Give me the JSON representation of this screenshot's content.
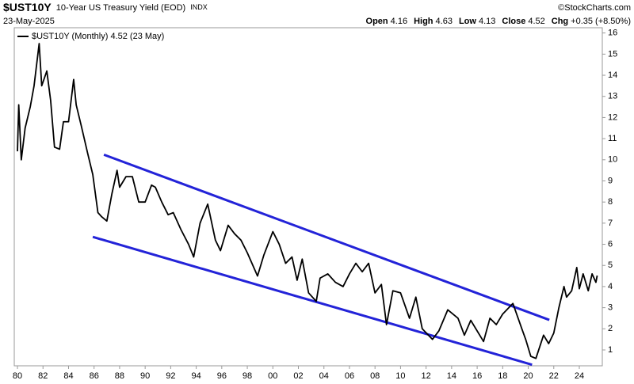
{
  "header": {
    "symbol": "$UST10Y",
    "name": "10-Year US Treasury Yield (EOD)",
    "exchange": "INDX",
    "source": "©StockCharts.com",
    "date": "23-May-2025",
    "quote": [
      {
        "label": "Open",
        "value": "4.16"
      },
      {
        "label": "High",
        "value": "4.63"
      },
      {
        "label": "Low",
        "value": "4.13"
      },
      {
        "label": "Close",
        "value": "4.52"
      },
      {
        "label": "Chg",
        "value": "+0.35 (+8.50%)"
      }
    ]
  },
  "chart_data": {
    "type": "line",
    "legend": "$UST10Y (Monthly) 4.52 (23 May)",
    "xlim": [
      1979.75,
      2025.8
    ],
    "ylim": [
      0.25,
      16.25
    ],
    "xticks": [
      {
        "value": 1980,
        "label": "80"
      },
      {
        "value": 1982,
        "label": "82"
      },
      {
        "value": 1984,
        "label": "84"
      },
      {
        "value": 1986,
        "label": "86"
      },
      {
        "value": 1988,
        "label": "88"
      },
      {
        "value": 1990,
        "label": "90"
      },
      {
        "value": 1992,
        "label": "92"
      },
      {
        "value": 1994,
        "label": "94"
      },
      {
        "value": 1996,
        "label": "96"
      },
      {
        "value": 1998,
        "label": "98"
      },
      {
        "value": 2000,
        "label": "00"
      },
      {
        "value": 2002,
        "label": "02"
      },
      {
        "value": 2004,
        "label": "04"
      },
      {
        "value": 2006,
        "label": "06"
      },
      {
        "value": 2008,
        "label": "08"
      },
      {
        "value": 2010,
        "label": "10"
      },
      {
        "value": 2012,
        "label": "12"
      },
      {
        "value": 2014,
        "label": "14"
      },
      {
        "value": 2016,
        "label": "16"
      },
      {
        "value": 2018,
        "label": "18"
      },
      {
        "value": 2020,
        "label": "20"
      },
      {
        "value": 2022,
        "label": "22"
      },
      {
        "value": 2024,
        "label": "24"
      }
    ],
    "yticks": [
      1,
      2,
      3,
      4,
      5,
      6,
      7,
      8,
      9,
      10,
      11,
      12,
      13,
      14,
      15,
      16
    ],
    "series": [
      {
        "name": "$UST10Y",
        "color": "#000000",
        "x": [
          1980.0,
          1980.1,
          1980.3,
          1980.6,
          1981.0,
          1981.3,
          1981.7,
          1981.9,
          1982.3,
          1982.6,
          1982.9,
          1983.3,
          1983.6,
          1984.0,
          1984.4,
          1984.6,
          1985.0,
          1985.5,
          1985.9,
          1986.3,
          1986.6,
          1987.0,
          1987.4,
          1987.8,
          1988.0,
          1988.5,
          1989.0,
          1989.5,
          1990.0,
          1990.5,
          1990.8,
          1991.3,
          1991.8,
          1992.2,
          1992.8,
          1993.4,
          1993.8,
          1994.3,
          1994.9,
          1995.5,
          1995.9,
          1996.5,
          1997.0,
          1997.5,
          1998.0,
          1998.8,
          1999.3,
          2000.0,
          2000.5,
          2001.0,
          2001.5,
          2001.9,
          2002.3,
          2002.8,
          2003.4,
          2003.7,
          2004.3,
          2004.9,
          2005.5,
          2006.0,
          2006.5,
          2007.0,
          2007.5,
          2008.0,
          2008.5,
          2008.9,
          2009.4,
          2010.0,
          2010.7,
          2011.2,
          2011.7,
          2012.5,
          2013.0,
          2013.7,
          2014.5,
          2015.0,
          2015.5,
          2016.5,
          2017.0,
          2017.5,
          2018.0,
          2018.8,
          2019.5,
          2019.8,
          2020.2,
          2020.6,
          2021.2,
          2021.6,
          2022.0,
          2022.4,
          2022.8,
          2023.0,
          2023.4,
          2023.8,
          2024.0,
          2024.3,
          2024.7,
          2025.0,
          2025.3,
          2025.4
        ],
        "values": [
          10.4,
          12.6,
          10.0,
          11.5,
          12.5,
          13.5,
          15.5,
          13.5,
          14.2,
          12.8,
          10.6,
          10.5,
          11.8,
          11.8,
          13.8,
          12.6,
          11.6,
          10.3,
          9.3,
          7.5,
          7.3,
          7.1,
          8.4,
          9.5,
          8.7,
          9.2,
          9.2,
          8.0,
          8.0,
          8.8,
          8.7,
          8.0,
          7.4,
          7.5,
          6.7,
          6.0,
          5.4,
          7.0,
          7.9,
          6.2,
          5.7,
          6.9,
          6.5,
          6.2,
          5.6,
          4.5,
          5.5,
          6.6,
          6.0,
          5.1,
          5.4,
          4.3,
          5.3,
          3.7,
          3.3,
          4.4,
          4.6,
          4.2,
          4.0,
          4.6,
          5.1,
          4.7,
          5.1,
          3.7,
          4.1,
          2.2,
          3.8,
          3.7,
          2.5,
          3.5,
          2.0,
          1.5,
          1.9,
          2.9,
          2.5,
          1.7,
          2.4,
          1.4,
          2.5,
          2.2,
          2.7,
          3.2,
          2.0,
          1.5,
          0.7,
          0.6,
          1.7,
          1.3,
          1.8,
          3.0,
          4.0,
          3.5,
          3.8,
          4.9,
          3.9,
          4.6,
          3.8,
          4.6,
          4.2,
          4.52
        ]
      }
    ],
    "trend_lines": [
      {
        "color": "#2323d8",
        "x": [
          1986.77,
          2021.65
        ],
        "values": [
          10.24,
          2.42
        ]
      },
      {
        "color": "#2323d8",
        "x": [
          1985.9,
          2020.3
        ],
        "values": [
          6.35,
          0.3
        ]
      }
    ]
  }
}
